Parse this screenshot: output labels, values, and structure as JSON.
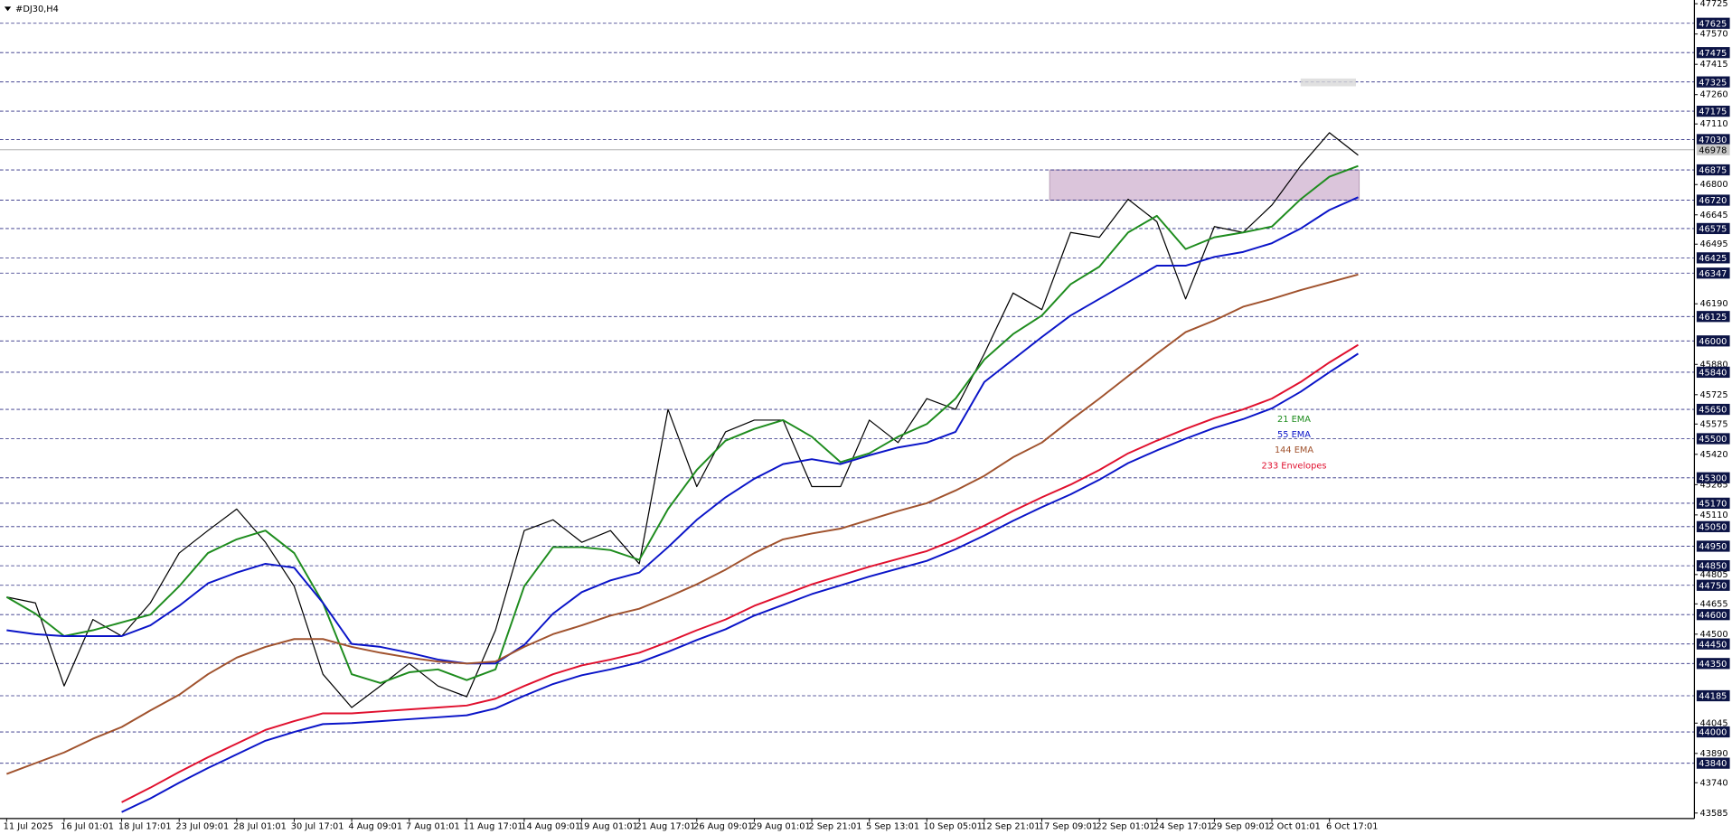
{
  "chart_data": {
    "type": "line",
    "title": "#DJ30,H4",
    "categories": [
      "11 Jul 2025",
      null,
      "16 Jul 01:01",
      null,
      "18 Jul 17:01",
      null,
      "23 Jul 09:01",
      null,
      "28 Jul 01:01",
      null,
      "30 Jul 17:01",
      null,
      "4 Aug 09:01",
      null,
      "7 Aug 01:01",
      null,
      "11 Aug 17:01",
      null,
      "14 Aug 09:01",
      null,
      "19 Aug 01:01",
      null,
      "21 Aug 17:01",
      null,
      "26 Aug 09:01",
      null,
      "29 Aug 01:01",
      null,
      "2 Sep 21:01",
      null,
      "5 Sep 13:01",
      null,
      "10 Sep 05:01",
      null,
      "12 Sep 21:01",
      null,
      "17 Sep 09:01",
      null,
      "22 Sep 01:01",
      null,
      "24 Sep 17:01",
      null,
      "29 Sep 09:01",
      null,
      "2 Oct 01:01",
      null,
      "6 Oct 17:01",
      null
    ],
    "series": [
      {
        "color": "#000000",
        "values": [
          44690,
          44660,
          44235,
          44575,
          44490,
          44660,
          44915,
          45030,
          45140,
          44970,
          44745,
          44295,
          44125,
          44235,
          44350,
          44235,
          44180,
          44520,
          45030,
          45085,
          44970,
          45030,
          44860,
          45650,
          45255,
          45535,
          45595,
          45595,
          45255,
          45255,
          45595,
          45480,
          45705,
          45650,
          45935,
          46245,
          46160,
          46555,
          46530,
          46725,
          46610,
          46215,
          46585,
          46555,
          46695,
          46895,
          47065,
          46950
        ]
      },
      {
        "name": "21 EMA",
        "color": "#1e8c1e",
        "values": [
          44690,
          44605,
          44490,
          44520,
          44560,
          44600,
          44745,
          44915,
          44985,
          45030,
          44915,
          44660,
          44295,
          44250,
          44305,
          44320,
          44265,
          44320,
          44745,
          44945,
          44945,
          44930,
          44880,
          45140,
          45340,
          45490,
          45550,
          45595,
          45510,
          45380,
          45425,
          45510,
          45575,
          45705,
          45905,
          46035,
          46130,
          46290,
          46380,
          46555,
          46640,
          46470,
          46530,
          46555,
          46585,
          46725,
          46840,
          46895
        ]
      },
      {
        "name": "55 EMA",
        "color": "#0a14c8",
        "values": [
          44520,
          44500,
          44490,
          44490,
          44490,
          44545,
          44645,
          44760,
          44815,
          44860,
          44840,
          44660,
          44450,
          44435,
          44405,
          44370,
          44350,
          44350,
          44445,
          44605,
          44715,
          44775,
          44815,
          44945,
          45085,
          45200,
          45295,
          45370,
          45395,
          45370,
          45415,
          45455,
          45480,
          45535,
          45790,
          45905,
          46020,
          46130,
          46215,
          46300,
          46385,
          46385,
          46430,
          46455,
          46500,
          46575,
          46670,
          46735
        ]
      },
      {
        "name": "144 EMA",
        "color": "#a0522d",
        "values": [
          43785,
          43840,
          43895,
          43965,
          44025,
          44110,
          44190,
          44295,
          44380,
          44435,
          44475,
          44475,
          44435,
          44405,
          44380,
          44360,
          44350,
          44360,
          44435,
          44500,
          44545,
          44595,
          44630,
          44690,
          44755,
          44830,
          44915,
          44985,
          45015,
          45040,
          45085,
          45130,
          45170,
          45235,
          45310,
          45405,
          45480,
          45595,
          45705,
          45820,
          45935,
          46045,
          46105,
          46175,
          46215,
          46260,
          46300,
          46340
        ]
      },
      {
        "name": "233 Envelopes",
        "color": "#e0102e",
        "values": [
          null,
          null,
          null,
          null,
          43640,
          43715,
          43795,
          43870,
          43940,
          44010,
          44055,
          44095,
          44095,
          44105,
          44115,
          44125,
          44135,
          44170,
          44235,
          44295,
          44340,
          44370,
          44405,
          44460,
          44520,
          44575,
          44645,
          44700,
          44755,
          44800,
          44845,
          44885,
          44925,
          44985,
          45055,
          45130,
          45200,
          45265,
          45340,
          45425,
          45490,
          45550,
          45605,
          45650,
          45705,
          45790,
          45890,
          45980
        ]
      },
      {
        "color": "#0a14c8",
        "values": [
          null,
          null,
          null,
          null,
          43590,
          43660,
          43740,
          43815,
          43885,
          43955,
          44000,
          44040,
          44045,
          44055,
          44065,
          44075,
          44085,
          44120,
          44185,
          44245,
          44290,
          44320,
          44355,
          44410,
          44470,
          44525,
          44595,
          44650,
          44705,
          44750,
          44795,
          44835,
          44875,
          44935,
          45005,
          45080,
          45150,
          45215,
          45290,
          45375,
          45440,
          45500,
          45555,
          45600,
          45655,
          45740,
          45840,
          45935
        ]
      }
    ],
    "ylim": [
      43557,
      47744
    ],
    "yticks": [
      47725,
      47570,
      47415,
      47260,
      47110,
      46800,
      46645,
      46495,
      46190,
      45880,
      45725,
      45575,
      45420,
      45265,
      45110,
      44805,
      44655,
      44500,
      44045,
      43890,
      43740,
      43585
    ],
    "levels": [
      47625,
      47475,
      47325,
      47175,
      47030,
      46875,
      46720,
      46575,
      46425,
      46347,
      46125,
      46000,
      45840,
      45650,
      45500,
      45300,
      45170,
      45050,
      44950,
      44850,
      44750,
      44600,
      44450,
      44350,
      44185,
      44000,
      43840
    ],
    "current_price": 46978,
    "zone": [
      46720,
      46875
    ],
    "grid": false
  }
}
